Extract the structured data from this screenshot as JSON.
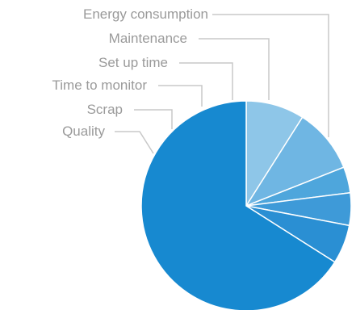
{
  "chart_data": {
    "type": "pie",
    "categories": [
      "Energy consumption",
      "Maintenance",
      "Set up time",
      "Time to monitor",
      "Scrap",
      "Quality"
    ],
    "values": [
      9,
      10,
      4,
      5,
      6,
      66
    ],
    "colors": [
      "#8ec6e8",
      "#6fb6e3",
      "#4ea6dc",
      "#3e9ad8",
      "#2a8fd3",
      "#1789d0"
    ],
    "title": "",
    "legend": "none"
  }
}
